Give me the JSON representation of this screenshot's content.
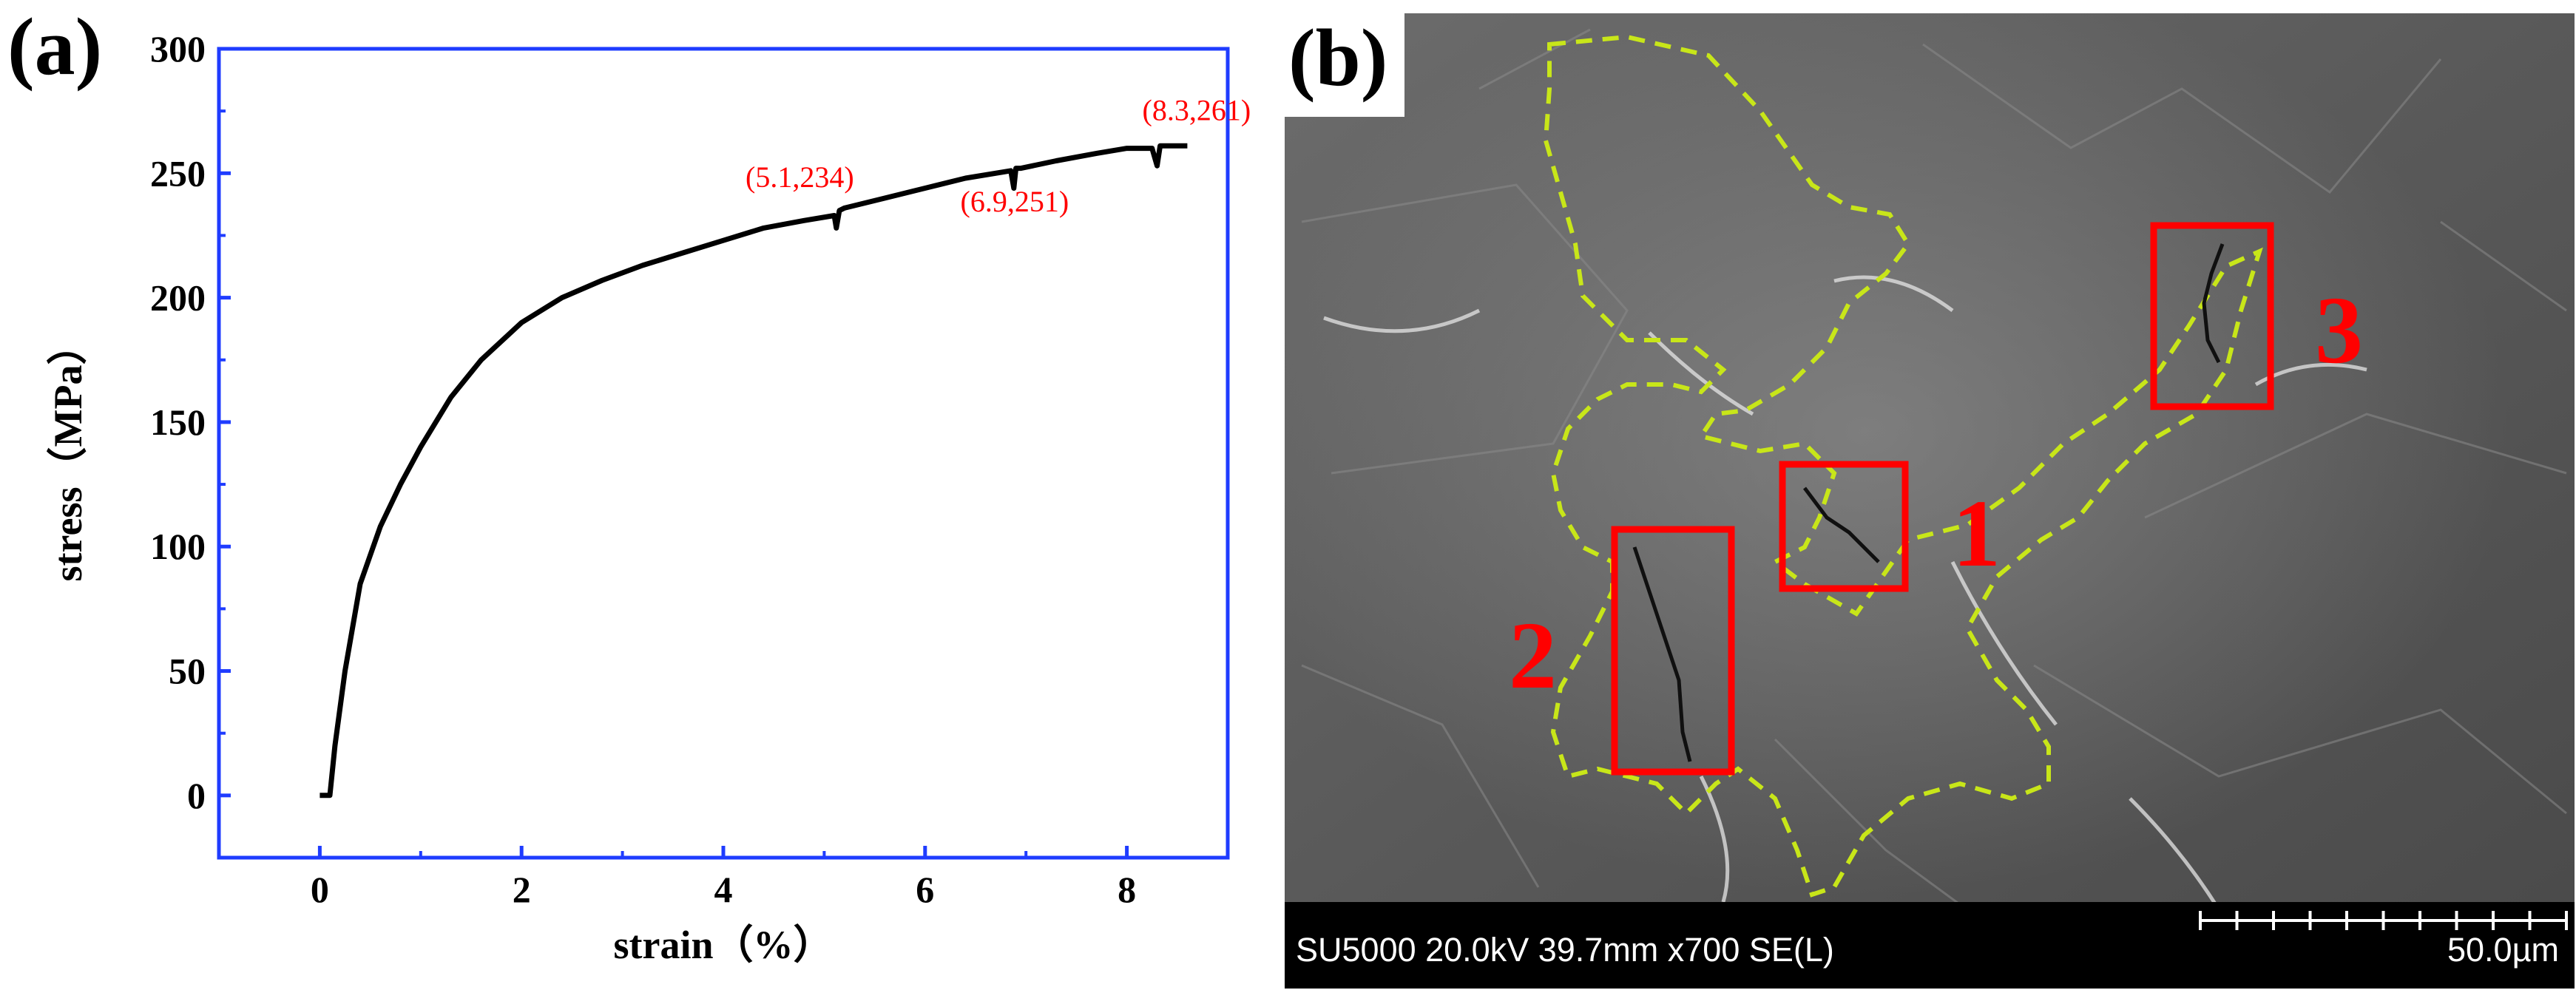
{
  "panels": {
    "a_label": "(a)",
    "b_label": "(b)"
  },
  "chart_data": {
    "type": "line",
    "xlabel": "strain（%）",
    "ylabel": "stress（MPa）",
    "xlim": [
      -1,
      9
    ],
    "ylim": [
      -25,
      300
    ],
    "xticks": [
      0,
      2,
      4,
      6,
      8
    ],
    "yticks": [
      0,
      50,
      100,
      150,
      200,
      250,
      300
    ],
    "grid": false,
    "series": [
      {
        "color": "#000000",
        "x": [
          0,
          0.1,
          0.15,
          0.25,
          0.4,
          0.6,
          0.8,
          1.0,
          1.3,
          1.6,
          2.0,
          2.4,
          2.8,
          3.2,
          3.6,
          4.0,
          4.4,
          4.8,
          5.1,
          5.12,
          5.15,
          5.2,
          5.6,
          6.0,
          6.4,
          6.85,
          6.88,
          6.9,
          6.95,
          7.3,
          7.7,
          8.0,
          8.25,
          8.3,
          8.33,
          8.4,
          8.6
        ],
        "y": [
          0,
          0,
          20,
          50,
          85,
          108,
          125,
          140,
          160,
          175,
          190,
          200,
          207,
          213,
          218,
          223,
          228,
          231,
          233,
          228,
          235,
          236,
          240,
          244,
          248,
          251,
          244,
          252,
          252,
          255,
          258,
          260,
          260,
          253,
          261,
          261,
          261
        ]
      }
    ],
    "annotations": [
      {
        "text": "(5.1,234)",
        "x": 5.1,
        "y": 234
      },
      {
        "text": "(6.9,251)",
        "x": 6.9,
        "y": 251
      },
      {
        "text": "(8.3,261)",
        "x": 8.3,
        "y": 261
      }
    ]
  },
  "sem_image": {
    "info_text": "SU5000 20.0kV 39.7mm x700 SE(L)",
    "scale_text": "50.0µm",
    "regions": [
      {
        "label": "1"
      },
      {
        "label": "2"
      },
      {
        "label": "3"
      }
    ],
    "colors": {
      "box": "#ff0000",
      "outline": "#c8e619"
    }
  }
}
